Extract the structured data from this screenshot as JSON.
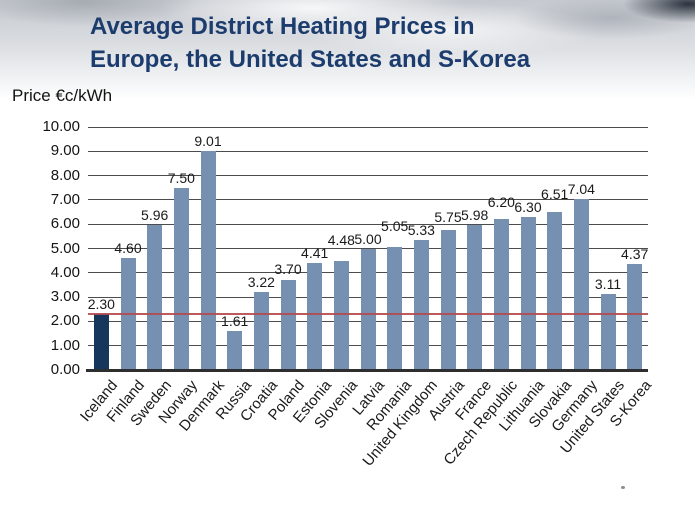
{
  "title": {
    "line1": "Average District Heating Prices in",
    "line2": "Europe, the United States and S-Korea"
  },
  "ylabel": "Price €c/kWh",
  "chart_data": {
    "type": "bar",
    "title": "Average District Heating Prices in Europe, the United States and S-Korea",
    "ylabel": "Price €c/kWh",
    "xlabel": "",
    "categories": [
      "Iceland",
      "Finland",
      "Sweden",
      "Norway",
      "Denmark",
      "Russia",
      "Croatia",
      "Poland",
      "Estonia",
      "Slovenia",
      "Latvia",
      "Romania",
      "United Kingdom",
      "Austria",
      "France",
      "Czech Republic",
      "Lithuania",
      "Slovakia",
      "Germany",
      "United States",
      "S-Korea"
    ],
    "values": [
      2.3,
      4.6,
      5.96,
      7.5,
      9.01,
      1.61,
      3.22,
      3.7,
      4.41,
      4.48,
      5.0,
      5.05,
      5.33,
      5.75,
      5.98,
      6.2,
      6.3,
      6.51,
      7.04,
      3.11,
      4.37
    ],
    "value_labels": [
      "2.30",
      "4.60",
      "5.96",
      "7.50",
      "9.01",
      "1.61",
      "3.22",
      "3.70",
      "4.41",
      "4.48",
      "5.00",
      "5.05",
      "5.33",
      "5.75",
      "5.98",
      "6.20",
      "6.30",
      "6.51",
      "7.04",
      "3.11",
      "4.37"
    ],
    "highlight_index": 0,
    "ylim": [
      0,
      10
    ],
    "ytick_labels": [
      "0.00",
      "1.00",
      "2.00",
      "3.00",
      "4.00",
      "5.00",
      "6.00",
      "7.00",
      "8.00",
      "9.00",
      "10.00"
    ],
    "grid": true,
    "legend": false,
    "reference_line": {
      "value": 2.3
    },
    "colors": {
      "bar": "#7590b0",
      "highlight": "#16365c",
      "grid": "#4c4c4c",
      "axis": "#2e2e2e",
      "reference": "#b5494e",
      "title": "#1c3c6e"
    }
  }
}
